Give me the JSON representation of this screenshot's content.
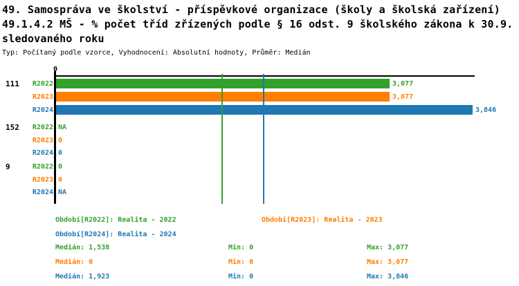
{
  "title": {
    "line1": "49. Samospráva ve školství - příspěvkové organizace (školy a školská zařízení)",
    "line2": "49.1.4.2 MŠ - % počet tříd zřízených podle § 16 odst. 9 školského zákona k 30.9.",
    "line3": "sledovaného roku",
    "meta": "Typ: Počítaný podle vzorce, Vyhodnocení: Absolutní hodnoty, Průměr: Medián"
  },
  "chart_data": {
    "type": "bar",
    "orientation": "horizontal",
    "x_axis": {
      "tick_label": "0",
      "min": 0,
      "max_extent": 3870,
      "grid": false
    },
    "series_colors": {
      "R2022": "#33a02c",
      "R2023": "#ff7f00",
      "R2024": "#1f78b4"
    },
    "axis_color": "#000000",
    "groups": [
      {
        "label": "111",
        "rows": [
          {
            "series": "R2022",
            "value": 3077,
            "display": "3,077"
          },
          {
            "series": "R2023",
            "value": 3077,
            "display": "3,077"
          },
          {
            "series": "R2024",
            "value": 3846,
            "display": "3,846"
          }
        ]
      },
      {
        "label": "152",
        "rows": [
          {
            "series": "R2022",
            "value": null,
            "display": "NA"
          },
          {
            "series": "R2023",
            "value": 0,
            "display": "0"
          },
          {
            "series": "R2024",
            "value": 0,
            "display": "0"
          }
        ]
      },
      {
        "label": "9",
        "rows": [
          {
            "series": "R2022",
            "value": 0,
            "display": "0"
          },
          {
            "series": "R2023",
            "value": 0,
            "display": "0"
          },
          {
            "series": "R2024",
            "value": null,
            "display": "NA"
          }
        ]
      }
    ],
    "median_lines": [
      {
        "series": "R2022",
        "value": 1538
      },
      {
        "series": "R2024",
        "value": 1923
      }
    ],
    "legend": [
      {
        "series": "R2022",
        "label": "Období[R2022]: Realita - 2022"
      },
      {
        "series": "R2023",
        "label": "Období[R2023]: Realita - 2023"
      },
      {
        "series": "R2024",
        "label": "Období[R2024]: Realita - 2024"
      }
    ],
    "stats": [
      {
        "series": "R2022",
        "median": 1538,
        "min": 0,
        "max": 3077,
        "median_label": "Medián: 1,538",
        "min_label": "Min: 0",
        "max_label": "Max: 3,077"
      },
      {
        "series": "R2023",
        "median": 0,
        "min": 0,
        "max": 3077,
        "median_label": "Medián: 0",
        "min_label": "Min: 0",
        "max_label": "Max: 3,077"
      },
      {
        "series": "R2024",
        "median": 1923,
        "min": 0,
        "max": 3846,
        "median_label": "Medián: 1,923",
        "min_label": "Min: 0",
        "max_label": "Max: 3,846"
      }
    ]
  }
}
